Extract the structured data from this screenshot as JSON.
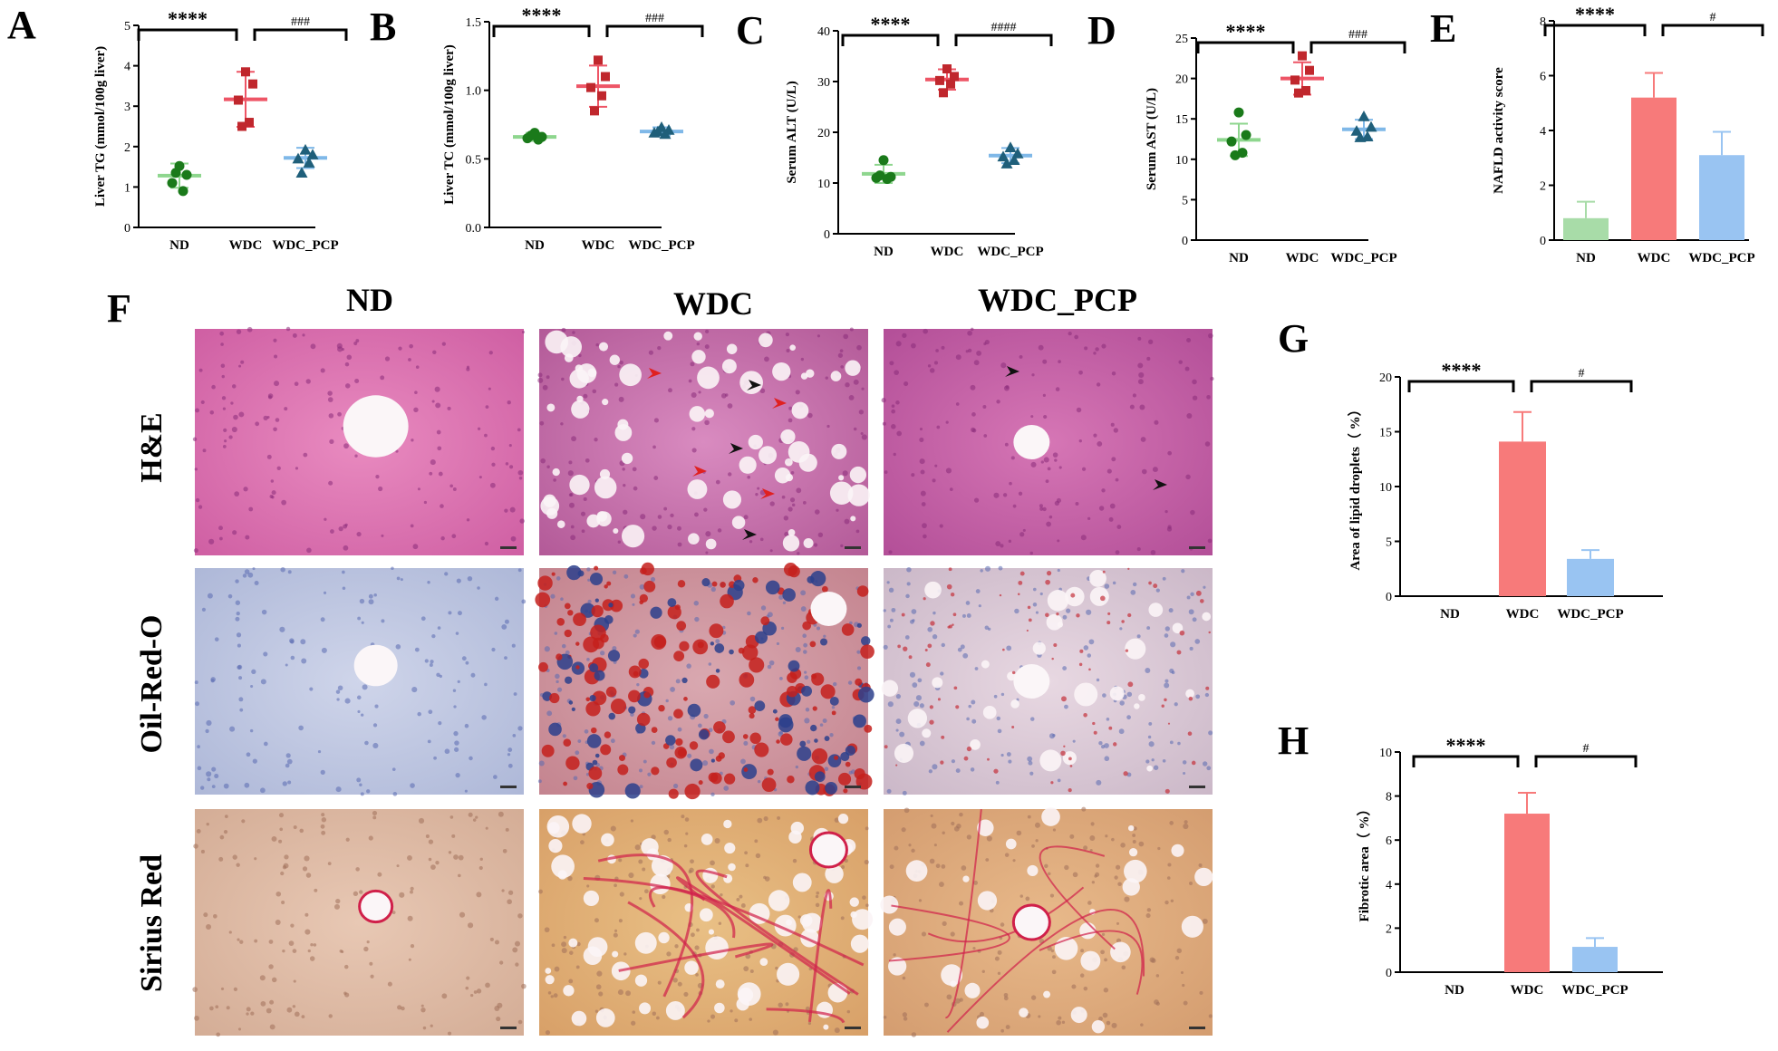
{
  "colors": {
    "ND": "#1a7a1a",
    "WDC": "#c0272d",
    "WDC_PCP": "#1f5f7a",
    "ND_line": "#8ed68e",
    "WDC_line": "#ee5566",
    "WDC_PCP_line": "#7fb8e8",
    "bar_ND": "#a8dca8",
    "bar_WDC": "#f77a7a",
    "bar_WDC_PCP": "#99c4f2"
  },
  "chart_data": [
    {
      "panel": "A",
      "type": "scatter",
      "categories": [
        "ND",
        "WDC",
        "WDC_PCP"
      ],
      "ylabel": "Liver TG (mmol/100g liver)",
      "ylim": [
        0,
        5
      ],
      "yticks": [
        "0",
        "1",
        "2",
        "3",
        "4",
        "5"
      ],
      "series": [
        {
          "category": "ND",
          "mean": 1.28,
          "sd": 0.3,
          "points": [
            1.52,
            1.3,
            1.1,
            0.9,
            1.35
          ]
        },
        {
          "category": "WDC",
          "mean": 3.17,
          "sd": 0.68,
          "points": [
            3.85,
            3.55,
            3.15,
            2.6,
            2.5
          ]
        },
        {
          "category": "WDC_PCP",
          "mean": 1.72,
          "sd": 0.25,
          "points": [
            1.92,
            1.8,
            1.7,
            1.6,
            1.35
          ]
        }
      ],
      "significance": [
        {
          "from": "ND",
          "to": "WDC",
          "label": "****"
        },
        {
          "from": "WDC",
          "to": "WDC_PCP",
          "label": "###"
        }
      ]
    },
    {
      "panel": "B",
      "type": "scatter",
      "categories": [
        "ND",
        "WDC",
        "WDC_PCP"
      ],
      "ylabel": "Liver TC (mmol/100g liver)",
      "ylim": [
        0,
        1.5
      ],
      "yticks": [
        "0.0",
        "0.5",
        "1.0",
        "1.5"
      ],
      "series": [
        {
          "category": "ND",
          "mean": 0.66,
          "sd": 0.03,
          "points": [
            0.69,
            0.66,
            0.65,
            0.64,
            0.67
          ]
        },
        {
          "category": "WDC",
          "mean": 1.03,
          "sd": 0.15,
          "points": [
            1.22,
            1.1,
            1.02,
            0.96,
            0.85
          ]
        },
        {
          "category": "WDC_PCP",
          "mean": 0.7,
          "sd": 0.03,
          "points": [
            0.73,
            0.71,
            0.69,
            0.68,
            0.7
          ]
        }
      ],
      "significance": [
        {
          "from": "ND",
          "to": "WDC",
          "label": "****"
        },
        {
          "from": "WDC",
          "to": "WDC_PCP",
          "label": "###"
        }
      ]
    },
    {
      "panel": "C",
      "type": "scatter",
      "categories": [
        "ND",
        "WDC",
        "WDC_PCP"
      ],
      "ylabel": "Serum ALT (U/L)",
      "ylim": [
        0,
        40
      ],
      "yticks": [
        "0",
        "10",
        "20",
        "30",
        "40"
      ],
      "series": [
        {
          "category": "ND",
          "mean": 11.8,
          "sd": 1.8,
          "points": [
            14.5,
            11.2,
            11.0,
            10.8,
            11.5
          ]
        },
        {
          "category": "WDC",
          "mean": 30.4,
          "sd": 2.0,
          "points": [
            32.5,
            31.0,
            30.2,
            29.5,
            27.8
          ]
        },
        {
          "category": "WDC_PCP",
          "mean": 15.4,
          "sd": 1.5,
          "points": [
            17.0,
            15.8,
            15.2,
            14.5,
            13.8
          ]
        }
      ],
      "significance": [
        {
          "from": "ND",
          "to": "WDC",
          "label": "****"
        },
        {
          "from": "WDC",
          "to": "WDC_PCP",
          "label": "####"
        }
      ]
    },
    {
      "panel": "D",
      "type": "scatter",
      "categories": [
        "ND",
        "WDC",
        "WDC_PCP"
      ],
      "ylabel": "Serum AST (U/L)",
      "ylim": [
        0,
        25
      ],
      "yticks": [
        "0",
        "5",
        "10",
        "15",
        "20",
        "25"
      ],
      "series": [
        {
          "category": "ND",
          "mean": 12.4,
          "sd": 2.0,
          "points": [
            15.8,
            13.0,
            12.2,
            10.8,
            10.5
          ]
        },
        {
          "category": "WDC",
          "mean": 20.0,
          "sd": 2.0,
          "points": [
            22.8,
            21.0,
            19.8,
            18.5,
            18.2
          ]
        },
        {
          "category": "WDC_PCP",
          "mean": 13.7,
          "sd": 1.2,
          "points": [
            15.3,
            14.0,
            13.5,
            12.8,
            12.7
          ]
        }
      ],
      "significance": [
        {
          "from": "ND",
          "to": "WDC",
          "label": "****"
        },
        {
          "from": "WDC",
          "to": "WDC_PCP",
          "label": "###"
        }
      ]
    },
    {
      "panel": "E",
      "type": "bar",
      "categories": [
        "ND",
        "WDC",
        "WDC_PCP"
      ],
      "values": [
        0.8,
        5.2,
        3.1
      ],
      "errors": [
        0.6,
        0.9,
        0.85
      ],
      "ylabel": "NAFLD activity score",
      "ylim": [
        0,
        8
      ],
      "yticks": [
        "0",
        "2",
        "4",
        "6",
        "8"
      ],
      "significance": [
        {
          "from": "ND",
          "to": "WDC",
          "label": "****"
        },
        {
          "from": "WDC",
          "to": "WDC_PCP",
          "label": "#"
        }
      ]
    },
    {
      "panel": "G",
      "type": "bar",
      "categories": [
        "ND",
        "WDC",
        "WDC_PCP"
      ],
      "values": [
        0,
        14.1,
        3.4
      ],
      "errors": [
        0,
        2.7,
        0.8
      ],
      "ylabel": "Area of lipid droplets（ %）",
      "ylim": [
        0,
        20
      ],
      "yticks": [
        "0",
        "5",
        "10",
        "15",
        "20"
      ],
      "significance": [
        {
          "from": "ND",
          "to": "WDC",
          "label": "****"
        },
        {
          "from": "WDC",
          "to": "WDC_PCP",
          "label": "#"
        }
      ]
    },
    {
      "panel": "H",
      "type": "bar",
      "categories": [
        "ND",
        "WDC",
        "WDC_PCP"
      ],
      "values": [
        0,
        7.2,
        1.15
      ],
      "errors": [
        0,
        0.95,
        0.4
      ],
      "ylabel": "Fibrotic area（ %）",
      "ylim": [
        0,
        10
      ],
      "yticks": [
        "0",
        "2",
        "4",
        "6",
        "8",
        "10"
      ],
      "significance": [
        {
          "from": "ND",
          "to": "WDC",
          "label": "****"
        },
        {
          "from": "WDC",
          "to": "WDC_PCP",
          "label": "#"
        }
      ]
    }
  ],
  "histology": {
    "panel": "F",
    "columns": [
      "ND",
      "WDC",
      "WDC_PCP"
    ],
    "rows": [
      "H&E",
      "Oil-Red-O",
      "Sirius Red"
    ]
  }
}
